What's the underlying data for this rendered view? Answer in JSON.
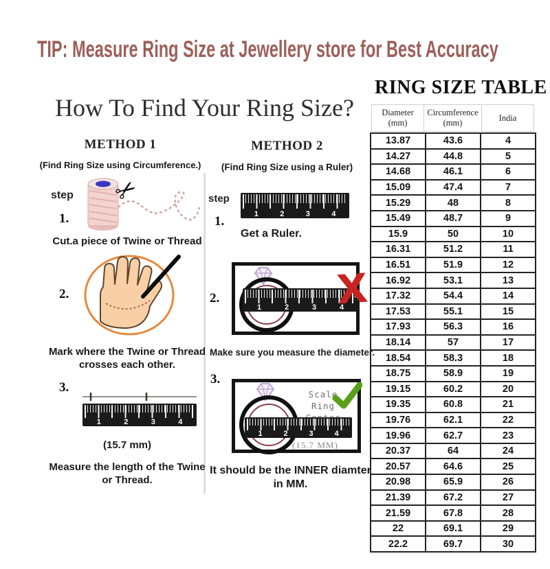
{
  "colors": {
    "tip_title": "#9d5f59",
    "heading_text": "#2e2e2e",
    "divider": "#dedede",
    "ruler_black": "#1a1a1a",
    "orange_circle": "#e8883a",
    "hand_skin": "#f9d0a5",
    "twine_pink": "#f3d3cf",
    "spool_blue": "#3b35c4",
    "ring_outer": "#101010",
    "ring_inner_maroon": "#8a4048",
    "diamond_purple": "#bda6d4",
    "red_x": "#c9241f",
    "green_check": "#58a019",
    "table_border": "#232323"
  },
  "tip_title": "TIP: Measure Ring Size at Jewellery store for Best Accuracy",
  "howto": {
    "heading": "How To Find Your Ring Size?",
    "method1": {
      "title": "METHOD 1",
      "subtitle": "(Find Ring Size using Circumference.)",
      "step_label": "step",
      "step1_num": "1.",
      "step1_caption": "Cut.a piece of Twine or Thread",
      "step2_num": "2.",
      "step2_caption": "Mark where the Twine or Thread crosses each other.",
      "step3_num": "3.",
      "step3_mm": "(15.7 mm)",
      "step3_caption": "Measure the length of the Twine or Thread."
    },
    "method2": {
      "title": "METHOD 2",
      "subtitle": "(Find Ring Size using a Ruler)",
      "step_label": "step",
      "step1_num": "1.",
      "step1_caption": "Get a Ruler.",
      "step2_num": "2.",
      "step2_caption": "Make sure you measure the diameter.",
      "step3_num": "3.",
      "step3_scale_line1": "Scale",
      "step3_scale_line2": "Ring Center",
      "step3_mm": "(15.7 MM)",
      "step3_caption": "It should be the INNER diamter in MM."
    }
  },
  "ruler_numbers": [
    "1",
    "2",
    "3",
    "4"
  ],
  "table": {
    "title": "RING SIZE TABLE",
    "headers": [
      {
        "line1": "Diameter",
        "line2": "(mm)"
      },
      {
        "line1": "Circumference",
        "line2": "(mm)"
      },
      {
        "line1": "India",
        "line2": ""
      }
    ],
    "rows": [
      [
        "13.87",
        "43.6",
        "4"
      ],
      [
        "14.27",
        "44.8",
        "5"
      ],
      [
        "14.68",
        "46.1",
        "6"
      ],
      [
        "15.09",
        "47.4",
        "7"
      ],
      [
        "15.29",
        "48",
        "8"
      ],
      [
        "15.49",
        "48.7",
        "9"
      ],
      [
        "15.9",
        "50",
        "10"
      ],
      [
        "16.31",
        "51.2",
        "11"
      ],
      [
        "16.51",
        "51.9",
        "12"
      ],
      [
        "16.92",
        "53.1",
        "13"
      ],
      [
        "17.32",
        "54.4",
        "14"
      ],
      [
        "17.53",
        "55.1",
        "15"
      ],
      [
        "17.93",
        "56.3",
        "16"
      ],
      [
        "18.14",
        "57",
        "17"
      ],
      [
        "18.54",
        "58.3",
        "18"
      ],
      [
        "18.75",
        "58.9",
        "19"
      ],
      [
        "19.15",
        "60.2",
        "20"
      ],
      [
        "19.35",
        "60.8",
        "21"
      ],
      [
        "19.76",
        "62.1",
        "22"
      ],
      [
        "19.96",
        "62.7",
        "23"
      ],
      [
        "20.37",
        "64",
        "24"
      ],
      [
        "20.57",
        "64.6",
        "25"
      ],
      [
        "20.98",
        "65.9",
        "26"
      ],
      [
        "21.39",
        "67.2",
        "27"
      ],
      [
        "21.59",
        "67.8",
        "28"
      ],
      [
        "22",
        "69.1",
        "29"
      ],
      [
        "22.2",
        "69.7",
        "30"
      ]
    ]
  }
}
